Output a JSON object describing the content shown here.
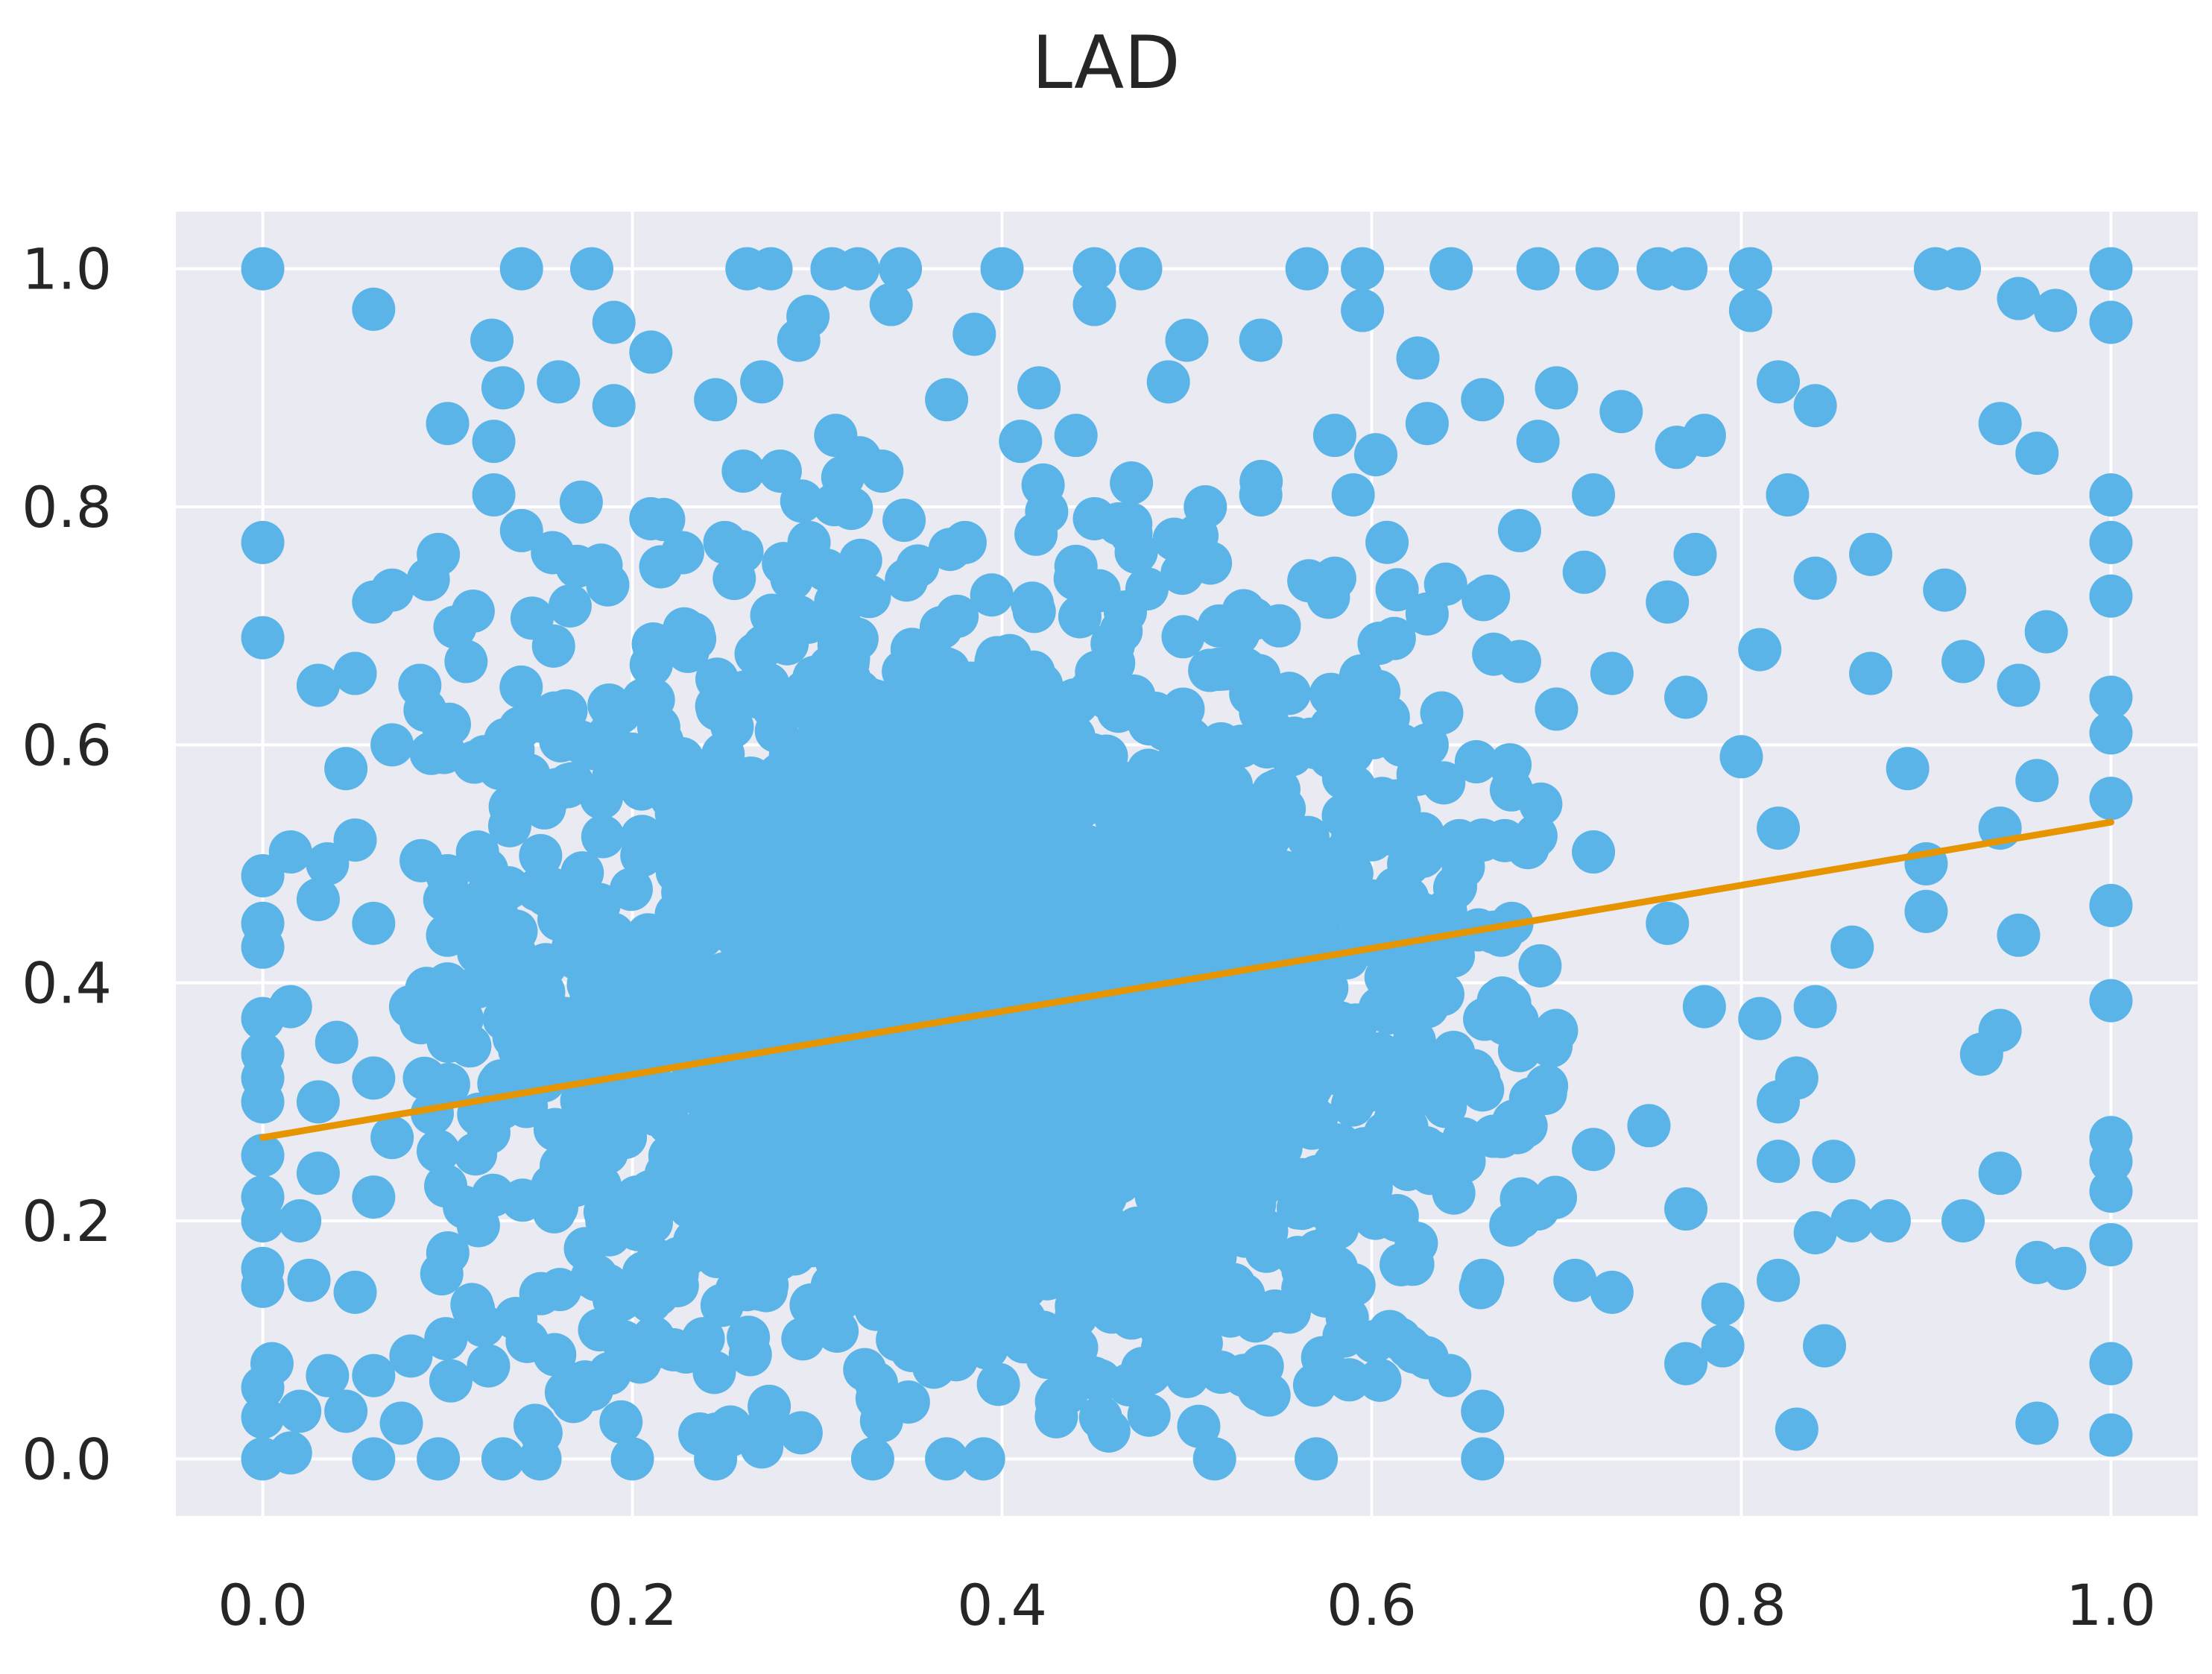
{
  "chart_data": {
    "type": "scatter",
    "title": "LAD",
    "xlabel": "",
    "ylabel": "",
    "xlim": [
      -0.047,
      1.047
    ],
    "ylim": [
      -0.048,
      1.048
    ],
    "xticks": [
      "0.0",
      "0.2",
      "0.4",
      "0.6",
      "0.8",
      "1.0"
    ],
    "yticks": [
      "0.0",
      "0.2",
      "0.4",
      "0.6",
      "0.8",
      "1.0"
    ],
    "grid": true,
    "legend": "none",
    "background_color": "#EAEAF2",
    "grid_color": "#FFFFFF",
    "colors": {
      "points": "#5AB4E8",
      "fit_line": "#E69500"
    },
    "series": [
      {
        "type": "scatter",
        "points": [
          [
            0.0,
            1.0
          ],
          [
            0.14,
            1.0
          ],
          [
            0.178,
            1.0
          ],
          [
            0.262,
            1.0
          ],
          [
            0.275,
            1.0
          ],
          [
            0.308,
            1.0
          ],
          [
            0.322,
            1.0
          ],
          [
            0.345,
            1.0
          ],
          [
            0.4,
            1.0
          ],
          [
            0.45,
            1.0
          ],
          [
            0.475,
            1.0
          ],
          [
            0.565,
            1.0
          ],
          [
            0.595,
            1.0
          ],
          [
            0.643,
            1.0
          ],
          [
            0.69,
            1.0
          ],
          [
            0.722,
            1.0
          ],
          [
            0.755,
            1.0
          ],
          [
            0.77,
            1.0
          ],
          [
            0.805,
            1.0
          ],
          [
            0.905,
            1.0
          ],
          [
            0.918,
            1.0
          ],
          [
            1.0,
            1.0
          ],
          [
            0.06,
            0.966
          ],
          [
            0.19,
            0.955
          ],
          [
            0.295,
            0.96
          ],
          [
            0.34,
            0.97
          ],
          [
            0.45,
            0.97
          ],
          [
            0.595,
            0.965
          ],
          [
            0.805,
            0.965
          ],
          [
            0.95,
            0.975
          ],
          [
            0.97,
            0.965
          ],
          [
            1.0,
            0.955
          ],
          [
            0.124,
            0.94
          ],
          [
            0.21,
            0.93
          ],
          [
            0.29,
            0.94
          ],
          [
            0.385,
            0.945
          ],
          [
            0.5,
            0.94
          ],
          [
            0.54,
            0.94
          ],
          [
            0.625,
            0.925
          ],
          [
            0.13,
            0.9
          ],
          [
            0.16,
            0.905
          ],
          [
            0.27,
            0.905
          ],
          [
            0.42,
            0.9
          ],
          [
            0.49,
            0.905
          ],
          [
            0.66,
            0.89
          ],
          [
            0.7,
            0.9
          ],
          [
            0.82,
            0.905
          ],
          [
            0.1,
            0.87
          ],
          [
            0.19,
            0.885
          ],
          [
            0.245,
            0.89
          ],
          [
            0.37,
            0.89
          ],
          [
            0.44,
            0.86
          ],
          [
            0.63,
            0.87
          ],
          [
            0.735,
            0.88
          ],
          [
            0.84,
            0.885
          ],
          [
            0.94,
            0.87
          ],
          [
            0.96,
            0.845
          ],
          [
            0.125,
            0.855
          ],
          [
            0.31,
            0.86
          ],
          [
            0.41,
            0.855
          ],
          [
            0.58,
            0.86
          ],
          [
            0.69,
            0.855
          ],
          [
            0.765,
            0.85
          ],
          [
            0.78,
            0.86
          ],
          [
            0.125,
            0.81
          ],
          [
            0.26,
            0.83
          ],
          [
            0.28,
            0.83
          ],
          [
            0.335,
            0.83
          ],
          [
            0.47,
            0.82
          ],
          [
            0.54,
            0.81
          ],
          [
            0.59,
            0.81
          ],
          [
            0.72,
            0.81
          ],
          [
            0.825,
            0.81
          ],
          [
            1.0,
            0.81
          ],
          [
            0.0,
            0.77
          ],
          [
            0.095,
            0.76
          ],
          [
            0.14,
            0.78
          ],
          [
            0.21,
            0.79
          ],
          [
            0.38,
            0.77
          ],
          [
            0.45,
            0.79
          ],
          [
            0.51,
            0.8
          ],
          [
            0.68,
            0.78
          ],
          [
            0.775,
            0.76
          ],
          [
            0.87,
            0.76
          ],
          [
            1.0,
            0.77
          ],
          [
            0.07,
            0.73
          ],
          [
            0.17,
            0.75
          ],
          [
            0.25,
            0.77
          ],
          [
            0.44,
            0.75
          ],
          [
            0.58,
            0.74
          ],
          [
            0.64,
            0.735
          ],
          [
            0.715,
            0.745
          ],
          [
            0.91,
            0.73
          ],
          [
            1.0,
            0.725
          ],
          [
            0.0,
            0.69
          ],
          [
            0.06,
            0.72
          ],
          [
            0.31,
            0.72
          ],
          [
            0.55,
            0.7
          ],
          [
            0.63,
            0.71
          ],
          [
            0.76,
            0.72
          ],
          [
            0.84,
            0.74
          ],
          [
            0.965,
            0.695
          ],
          [
            0.03,
            0.65
          ],
          [
            0.05,
            0.66
          ],
          [
            0.085,
            0.65
          ],
          [
            0.11,
            0.67
          ],
          [
            0.15,
            0.62
          ],
          [
            0.68,
            0.67
          ],
          [
            0.73,
            0.66
          ],
          [
            0.77,
            0.64
          ],
          [
            0.81,
            0.68
          ],
          [
            0.87,
            0.66
          ],
          [
            0.92,
            0.67
          ],
          [
            0.95,
            0.65
          ],
          [
            1.0,
            0.64
          ],
          [
            0.045,
            0.58
          ],
          [
            0.07,
            0.6
          ],
          [
            0.12,
            0.59
          ],
          [
            0.63,
            0.6
          ],
          [
            0.7,
            0.63
          ],
          [
            0.8,
            0.59
          ],
          [
            0.89,
            0.58
          ],
          [
            0.96,
            0.57
          ],
          [
            1.0,
            0.61
          ],
          [
            0.0,
            0.49
          ],
          [
            0.015,
            0.51
          ],
          [
            0.035,
            0.5
          ],
          [
            0.05,
            0.52
          ],
          [
            0.1,
            0.49
          ],
          [
            0.62,
            0.5
          ],
          [
            0.66,
            0.52
          ],
          [
            0.72,
            0.51
          ],
          [
            0.82,
            0.53
          ],
          [
            0.9,
            0.5
          ],
          [
            0.94,
            0.53
          ],
          [
            1.0,
            0.555
          ],
          [
            0.0,
            0.45
          ],
          [
            0.0,
            0.43
          ],
          [
            0.03,
            0.47
          ],
          [
            0.06,
            0.45
          ],
          [
            0.1,
            0.44
          ],
          [
            0.64,
            0.46
          ],
          [
            0.67,
            0.44
          ],
          [
            0.76,
            0.45
          ],
          [
            0.86,
            0.43
          ],
          [
            0.9,
            0.46
          ],
          [
            0.95,
            0.44
          ],
          [
            1.0,
            0.465
          ],
          [
            0.0,
            0.37
          ],
          [
            0.015,
            0.38
          ],
          [
            0.04,
            0.35
          ],
          [
            0.08,
            0.38
          ],
          [
            0.63,
            0.38
          ],
          [
            0.7,
            0.36
          ],
          [
            0.78,
            0.38
          ],
          [
            0.81,
            0.37
          ],
          [
            0.84,
            0.38
          ],
          [
            0.94,
            0.36
          ],
          [
            1.0,
            0.385
          ],
          [
            0.0,
            0.34
          ],
          [
            0.0,
            0.32
          ],
          [
            0.0,
            0.3
          ],
          [
            0.03,
            0.3
          ],
          [
            0.06,
            0.32
          ],
          [
            0.66,
            0.31
          ],
          [
            0.75,
            0.28
          ],
          [
            0.82,
            0.3
          ],
          [
            0.83,
            0.32
          ],
          [
            0.93,
            0.34
          ],
          [
            0.0,
            0.255
          ],
          [
            0.03,
            0.24
          ],
          [
            0.07,
            0.27
          ],
          [
            0.65,
            0.25
          ],
          [
            0.72,
            0.26
          ],
          [
            0.82,
            0.25
          ],
          [
            0.85,
            0.25
          ],
          [
            1.0,
            0.27
          ],
          [
            1.0,
            0.25
          ],
          [
            0.0,
            0.22
          ],
          [
            0.0,
            0.2
          ],
          [
            0.02,
            0.2
          ],
          [
            0.06,
            0.22
          ],
          [
            0.69,
            0.21
          ],
          [
            0.77,
            0.21
          ],
          [
            0.84,
            0.19
          ],
          [
            0.86,
            0.2
          ],
          [
            0.88,
            0.2
          ],
          [
            0.92,
            0.2
          ],
          [
            0.94,
            0.24
          ],
          [
            1.0,
            0.225
          ],
          [
            0.0,
            0.16
          ],
          [
            0.0,
            0.145
          ],
          [
            0.025,
            0.15
          ],
          [
            0.05,
            0.14
          ],
          [
            0.66,
            0.15
          ],
          [
            0.71,
            0.15
          ],
          [
            0.73,
            0.14
          ],
          [
            0.79,
            0.13
          ],
          [
            0.82,
            0.15
          ],
          [
            0.96,
            0.165
          ],
          [
            0.975,
            0.16
          ],
          [
            1.0,
            0.18
          ],
          [
            0.005,
            0.08
          ],
          [
            0.0,
            0.06
          ],
          [
            0.035,
            0.07
          ],
          [
            0.06,
            0.07
          ],
          [
            0.63,
            0.085
          ],
          [
            0.79,
            0.095
          ],
          [
            0.845,
            0.095
          ],
          [
            0.77,
            0.08
          ],
          [
            1.0,
            0.08
          ],
          [
            0.0,
            0.035
          ],
          [
            0.02,
            0.04
          ],
          [
            0.045,
            0.04
          ],
          [
            0.075,
            0.03
          ],
          [
            0.66,
            0.04
          ],
          [
            0.83,
            0.025
          ],
          [
            0.96,
            0.03
          ],
          [
            1.0,
            0.02
          ],
          [
            0.0,
            0.0
          ],
          [
            0.015,
            0.005
          ],
          [
            0.06,
            0.0
          ],
          [
            0.095,
            0.0
          ],
          [
            0.13,
            0.0
          ],
          [
            0.15,
            0.0
          ],
          [
            0.2,
            0.0
          ],
          [
            0.245,
            0.0
          ],
          [
            0.27,
            0.01
          ],
          [
            0.33,
            0.0
          ],
          [
            0.37,
            0.0
          ],
          [
            0.39,
            0.0
          ],
          [
            0.515,
            0.0
          ],
          [
            0.57,
            0.0
          ],
          [
            0.66,
            0.0
          ]
        ]
      },
      {
        "type": "line",
        "x": [
          0.0,
          1.0
        ],
        "y": [
          0.27,
          0.535
        ]
      }
    ],
    "dense_cloud": {
      "x_range": [
        0.08,
        0.7
      ],
      "y_range": [
        0.02,
        0.86
      ],
      "center": [
        0.38,
        0.38
      ]
    }
  }
}
